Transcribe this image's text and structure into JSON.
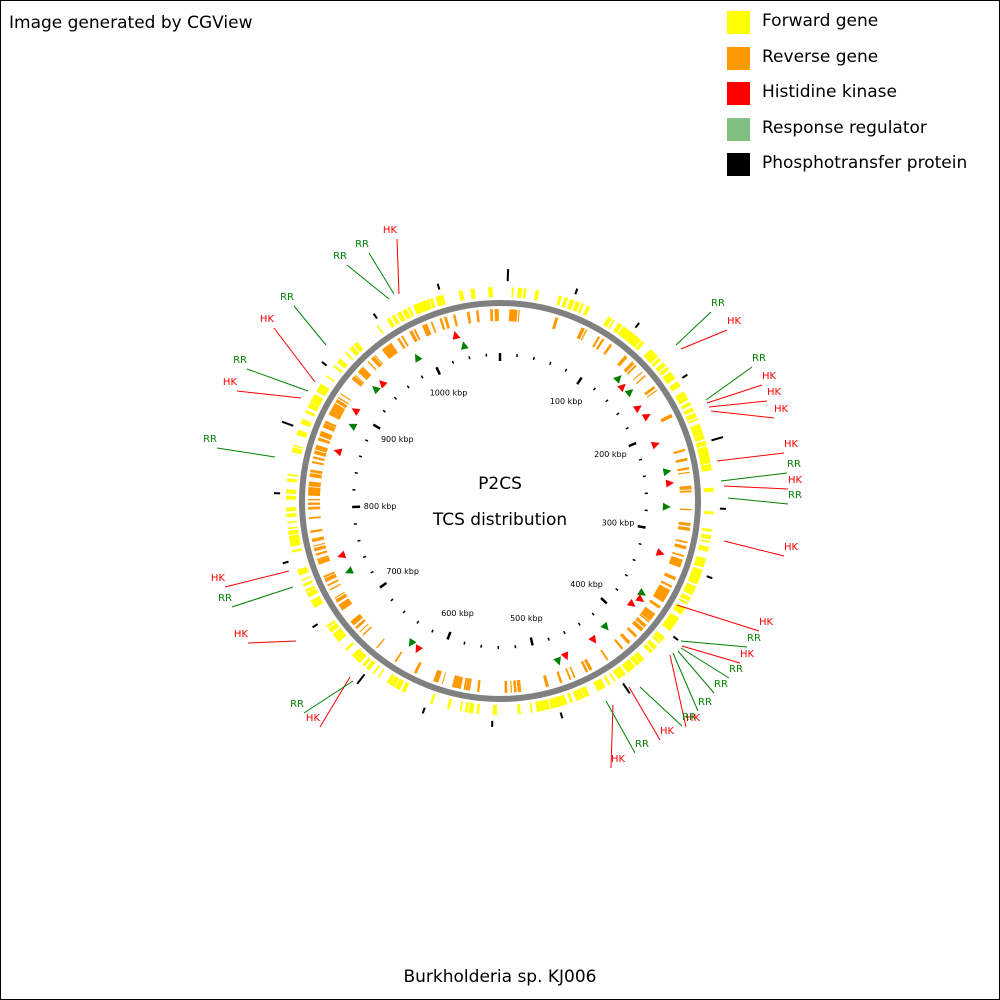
{
  "header": {
    "credit": "Image generated by CGView"
  },
  "legend": [
    {
      "label": "Forward gene",
      "color": "#ffff00",
      "icon": "square-swatch"
    },
    {
      "label": "Reverse gene",
      "color": "#ff9900",
      "icon": "square-swatch"
    },
    {
      "label": "Histidine kinase",
      "color": "#ff0000",
      "icon": "square-swatch"
    },
    {
      "label": "Response regulator",
      "color": "#80c080",
      "icon": "square-swatch"
    },
    {
      "label": "Phosphotransfer protein",
      "color": "#000000",
      "icon": "square-swatch"
    }
  ],
  "map": {
    "title": "P2CS",
    "subtitle": "TCS distribution",
    "organism": "Burkholderia sp. KJ006",
    "colors": {
      "forward": "#ffff00",
      "reverse": "#ff9900",
      "backbone": "#808080",
      "hk": "#ff0000",
      "rr": "#008000",
      "ticks": "#000000"
    },
    "tick_labels": [
      "100 kbp",
      "200 kbp",
      "300 kbp",
      "400 kbp",
      "500 kbp",
      "600 kbp",
      "700 kbp",
      "800 kbp",
      "900 kbp",
      "1000 kbp"
    ],
    "callouts": [
      {
        "label": "HK",
        "type": "hk"
      },
      {
        "label": "RR",
        "type": "rr"
      },
      {
        "label": "RR",
        "type": "rr"
      },
      {
        "label": "RR",
        "type": "rr"
      },
      {
        "label": "HK",
        "type": "hk"
      },
      {
        "label": "RR",
        "type": "rr"
      },
      {
        "label": "HK",
        "type": "hk"
      },
      {
        "label": "HK",
        "type": "hk"
      },
      {
        "label": "HK",
        "type": "hk"
      },
      {
        "label": "HK",
        "type": "hk"
      },
      {
        "label": "RR",
        "type": "rr"
      },
      {
        "label": "HK",
        "type": "hk"
      },
      {
        "label": "RR",
        "type": "rr"
      },
      {
        "label": "HK",
        "type": "hk"
      },
      {
        "label": "HK",
        "type": "hk"
      },
      {
        "label": "RR",
        "type": "rr"
      },
      {
        "label": "HK",
        "type": "hk"
      },
      {
        "label": "RR",
        "type": "rr"
      },
      {
        "label": "RR",
        "type": "rr"
      },
      {
        "label": "RR",
        "type": "rr"
      },
      {
        "label": "HK",
        "type": "hk"
      },
      {
        "label": "RR",
        "type": "rr"
      },
      {
        "label": "HK",
        "type": "hk"
      },
      {
        "label": "HK",
        "type": "hk"
      },
      {
        "label": "RR",
        "type": "rr"
      },
      {
        "label": "HK",
        "type": "hk"
      },
      {
        "label": "RR",
        "type": "rr"
      },
      {
        "label": "HK",
        "type": "hk"
      },
      {
        "label": "RR",
        "type": "rr"
      },
      {
        "label": "HK",
        "type": "hk"
      },
      {
        "label": "RR",
        "type": "rr"
      },
      {
        "label": "HK",
        "type": "hk"
      },
      {
        "label": "RR",
        "type": "rr"
      },
      {
        "label": "HK",
        "type": "hk"
      },
      {
        "label": "RR",
        "type": "rr"
      }
    ]
  }
}
